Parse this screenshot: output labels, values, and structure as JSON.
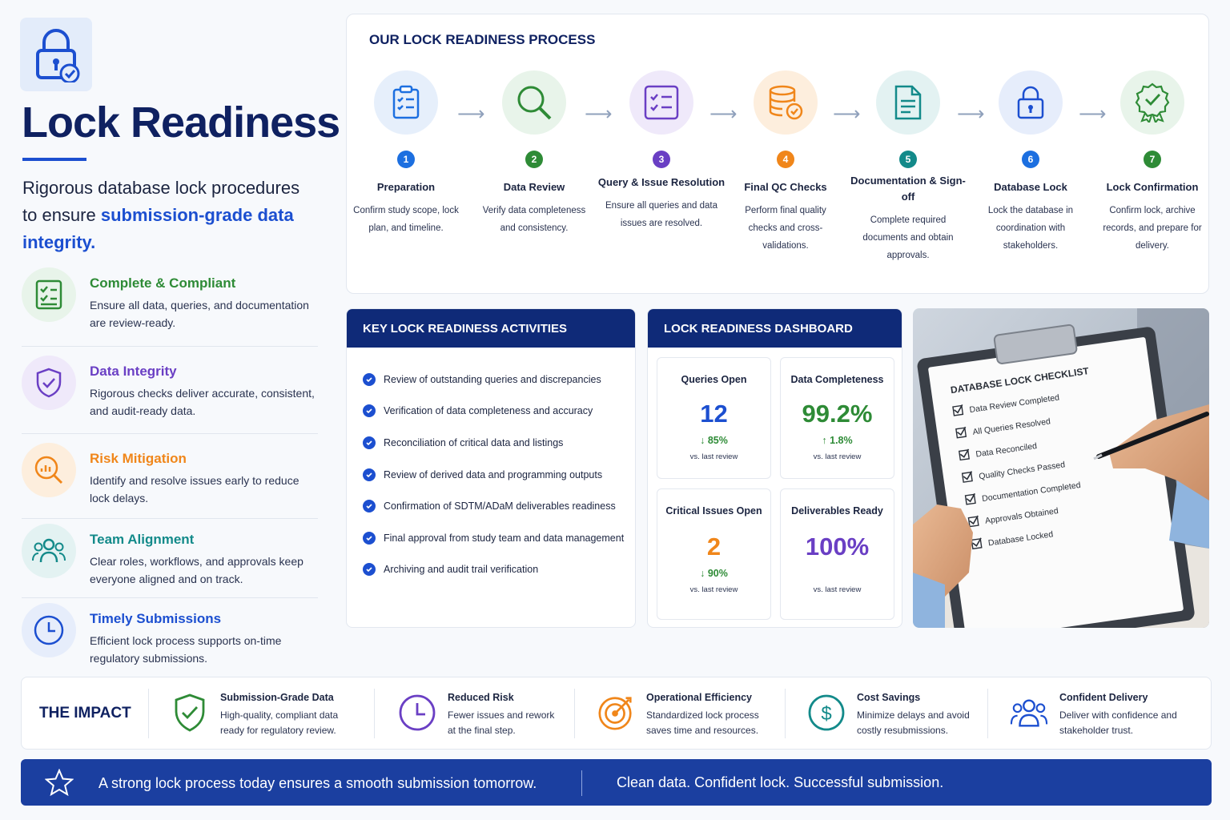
{
  "hero": {
    "title": "Lock Readiness",
    "subtitle_part1": "Rigorous database lock procedures to ensure ",
    "subtitle_highlight": "submission-grade data integrity."
  },
  "features": [
    {
      "title": "Complete & Compliant",
      "desc": "Ensure all data, queries, and documentation are review-ready.",
      "icon": "checklist-icon",
      "color": "#2e8b36"
    },
    {
      "title": "Data Integrity",
      "desc": "Rigorous checks deliver accurate, consistent, and audit-ready data.",
      "icon": "shield-check-icon",
      "color": "#6a3fc4"
    },
    {
      "title": "Risk Mitigation",
      "desc": "Identify and resolve issues early to reduce lock delays.",
      "icon": "chart-magnifier-icon",
      "color": "#f0861a"
    },
    {
      "title": "Team Alignment",
      "desc": "Clear roles, workflows, and approvals keep everyone aligned and on track.",
      "icon": "team-icon",
      "color": "#138a8a"
    },
    {
      "title": "Timely Submissions",
      "desc": "Efficient lock process supports on-time regulatory submissions.",
      "icon": "clock-icon",
      "color": "#1c4fd0"
    }
  ],
  "process": {
    "title": "OUR LOCK READINESS PROCESS",
    "steps": [
      {
        "num": "1",
        "title": "Preparation",
        "desc": "Confirm study scope, lock plan, and timeline.",
        "icon": "clipboard-icon",
        "color": "#1c6fe0",
        "bg": "#e6effb"
      },
      {
        "num": "2",
        "title": "Data Review",
        "desc": "Verify data completeness and consistency.",
        "icon": "magnifier-icon",
        "color": "#2e8b36",
        "bg": "#e8f4ea"
      },
      {
        "num": "3",
        "title": "Query & Issue Resolution",
        "desc": "Ensure all queries and data issues are resolved.",
        "icon": "task-list-icon",
        "color": "#6a3fc4",
        "bg": "#efe9fa"
      },
      {
        "num": "4",
        "title": "Final QC Checks",
        "desc": "Perform final quality checks and cross-validations.",
        "icon": "database-check-icon",
        "color": "#f0861a",
        "bg": "#fdeedd"
      },
      {
        "num": "5",
        "title": "Documentation & Sign-off",
        "desc": "Complete required documents and obtain approvals.",
        "icon": "document-icon",
        "color": "#138a8a",
        "bg": "#e3f2f2"
      },
      {
        "num": "6",
        "title": "Database Lock",
        "desc": "Lock the database in coordination with stakeholders.",
        "icon": "lock-icon",
        "color": "#1c4fd0",
        "bg": "#e6edfb"
      },
      {
        "num": "7",
        "title": "Lock Confirmation",
        "desc": "Confirm lock, archive records, and prepare for delivery.",
        "icon": "badge-check-icon",
        "color": "#2e8b36",
        "bg": "#e8f4ea"
      }
    ]
  },
  "activities": {
    "title": "KEY LOCK READINESS ACTIVITIES",
    "items": [
      "Review of outstanding queries and discrepancies",
      "Verification of data completeness and accuracy",
      "Reconciliation of critical data and listings",
      "Review of derived data and programming outputs",
      "Confirmation of SDTM/ADaM deliverables readiness",
      "Final approval from study team and data management",
      "Archiving and audit trail verification"
    ]
  },
  "dashboard": {
    "title": "LOCK READINESS DASHBOARD",
    "metrics": [
      {
        "label": "Queries Open",
        "value": "12",
        "change": "↓ 85%",
        "note": "vs. last review",
        "color": "#1c4fd0",
        "change_color": "#2e8b36"
      },
      {
        "label": "Data Completeness",
        "value": "99.2%",
        "change": "↑ 1.8%",
        "note": "vs. last review",
        "color": "#2e8b36",
        "change_color": "#2e8b36"
      },
      {
        "label": "Critical Issues Open",
        "value": "2",
        "change": "↓ 90%",
        "note": "vs. last review",
        "color": "#f0861a",
        "change_color": "#2e8b36"
      },
      {
        "label": "Deliverables Ready",
        "value": "100%",
        "change": "",
        "note": "vs. last review",
        "color": "#6a3fc4",
        "change_color": "#2e8b36"
      }
    ]
  },
  "checklist": {
    "title": "DATABASE LOCK CHECKLIST",
    "items": [
      "Data Review Completed",
      "All Queries Resolved",
      "Data Reconciled",
      "Quality Checks Passed",
      "Documentation Completed",
      "Approvals Obtained",
      "Database Locked"
    ]
  },
  "impact": {
    "title": "THE IMPACT",
    "items": [
      {
        "title": "Submission-Grade Data",
        "desc": "High-quality, compliant data ready for regulatory review.",
        "icon": "shield-check-icon",
        "color": "#2e8b36"
      },
      {
        "title": "Reduced Risk",
        "desc": "Fewer issues and rework at the final step.",
        "icon": "clock-icon",
        "color": "#6a3fc4"
      },
      {
        "title": "Operational Efficiency",
        "desc": "Standardized lock process saves time and resources.",
        "icon": "target-icon",
        "color": "#f0861a"
      },
      {
        "title": "Cost Savings",
        "desc": "Minimize delays and avoid costly resubmissions.",
        "icon": "dollar-icon",
        "color": "#138a8a"
      },
      {
        "title": "Confident Delivery",
        "desc": "Deliver with confidence and stakeholder trust.",
        "icon": "team-icon",
        "color": "#1c4fd0"
      }
    ]
  },
  "footer": {
    "left": "A strong lock process today ensures a smooth submission tomorrow.",
    "right": "Clean data. Confident lock. Successful submission."
  }
}
